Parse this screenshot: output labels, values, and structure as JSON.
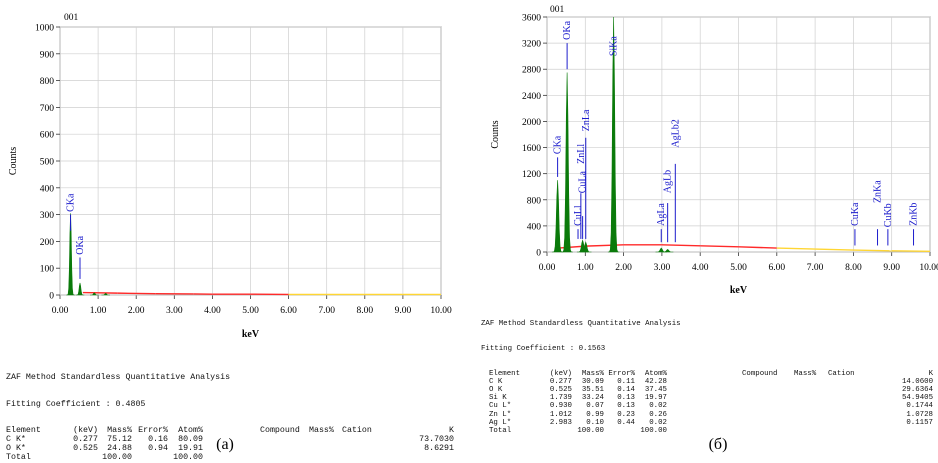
{
  "chart_data": [
    {
      "id": "a",
      "type": "line",
      "title": "",
      "corner_label": "001",
      "xlabel": "keV",
      "ylabel": "Counts",
      "xlim": [
        0,
        10
      ],
      "ylim": [
        0,
        1000
      ],
      "x_ticks": [
        0,
        1,
        2,
        3,
        4,
        5,
        6,
        7,
        8,
        9,
        10
      ],
      "x_tick_labels": [
        "0.00",
        "1.00",
        "2.00",
        "3.00",
        "4.00",
        "5.00",
        "6.00",
        "7.00",
        "8.00",
        "9.00",
        "10.00"
      ],
      "y_ticks": [
        0,
        100,
        200,
        300,
        400,
        500,
        600,
        700,
        800,
        900,
        1000
      ],
      "y_tick_labels": [
        "0",
        "100",
        "200",
        "300",
        "400",
        "500",
        "600",
        "700",
        "800",
        "900",
        "1000"
      ],
      "grid": true,
      "peaks": [
        {
          "x": 0.277,
          "height": 305
        },
        {
          "x": 0.525,
          "height": 45
        },
        {
          "x": 0.9,
          "height": 8
        },
        {
          "x": 1.2,
          "height": 6
        }
      ],
      "background": {
        "x": [
          0.6,
          1.5,
          2.5,
          3.5,
          4.0,
          5,
          6,
          7,
          8,
          9,
          10
        ],
        "y": [
          9,
          7,
          5,
          4,
          3,
          3,
          2,
          2,
          2,
          2,
          2
        ]
      },
      "annotations": [
        {
          "label": "CKa",
          "x": 0.277,
          "line_bottom": 240,
          "line_top": 300,
          "text_bottom": 310
        },
        {
          "label": "OKa",
          "x": 0.525,
          "line_bottom": 60,
          "line_top": 140,
          "text_bottom": 150
        }
      ],
      "colors": {
        "peak": "#0a7a0a",
        "background_low": "#ff2a2a",
        "background_high": "#ffd633",
        "annotation": "#1c1ccc",
        "grid": "#cfcfcf"
      }
    },
    {
      "id": "b",
      "type": "line",
      "title": "",
      "corner_label": "001",
      "xlabel": "keV",
      "ylabel": "Counts",
      "xlim": [
        0,
        10
      ],
      "ylim": [
        0,
        3600
      ],
      "x_ticks": [
        0,
        1,
        2,
        3,
        4,
        5,
        6,
        7,
        8,
        9,
        10
      ],
      "x_tick_labels": [
        "0.00",
        "1.00",
        "2.00",
        "3.00",
        "4.00",
        "5.00",
        "6.00",
        "7.00",
        "8.00",
        "9.00",
        "10.00"
      ],
      "y_ticks": [
        0,
        400,
        800,
        1200,
        1600,
        2000,
        2400,
        2800,
        3200,
        3600
      ],
      "y_tick_labels": [
        "0",
        "400",
        "800",
        "1200",
        "1600",
        "2000",
        "2400",
        "2800",
        "3200",
        "3600"
      ],
      "grid": true,
      "peaks": [
        {
          "x": 0.277,
          "height": 1100
        },
        {
          "x": 0.525,
          "height": 2750
        },
        {
          "x": 0.93,
          "height": 180
        },
        {
          "x": 1.012,
          "height": 150
        },
        {
          "x": 1.739,
          "height": 3600
        },
        {
          "x": 2.983,
          "height": 60
        },
        {
          "x": 3.15,
          "height": 40
        }
      ],
      "background": {
        "x": [
          0.3,
          1.0,
          2.0,
          3.0,
          4.0,
          5.0,
          6.0,
          7.0,
          8.0,
          9.0,
          10.0
        ],
        "y": [
          60,
          90,
          110,
          110,
          95,
          80,
          60,
          45,
          30,
          18,
          10
        ]
      },
      "annotations": [
        {
          "label": "CKa",
          "x": 0.277,
          "line_bottom": 1150,
          "line_top": 1450,
          "text_bottom": 1500
        },
        {
          "label": "OKa",
          "x": 0.525,
          "line_bottom": 2800,
          "line_top": 3200,
          "text_bottom": 3250
        },
        {
          "label": "CuLl",
          "x": 0.81,
          "line_bottom": 200,
          "line_top": 350,
          "text_bottom": 400
        },
        {
          "label": "CuLa",
          "x": 0.93,
          "line_bottom": 200,
          "line_top": 550,
          "text_bottom": 900
        },
        {
          "label": "ZnLl",
          "x": 0.884,
          "line_bottom": 200,
          "line_top": 900,
          "text_bottom": 1350
        },
        {
          "label": "ZnLa",
          "x": 1.012,
          "line_bottom": 200,
          "line_top": 1750,
          "text_bottom": 1850
        },
        {
          "label": "SiKa",
          "x": 1.739,
          "line_bottom": 3600,
          "line_top": 3600,
          "text_bottom": 3000
        },
        {
          "label": "AgLa",
          "x": 2.983,
          "line_bottom": 150,
          "line_top": 350,
          "text_bottom": 400
        },
        {
          "label": "AgLb",
          "x": 3.15,
          "line_bottom": 150,
          "line_top": 750,
          "text_bottom": 900
        },
        {
          "label": "AgLb2",
          "x": 3.35,
          "line_bottom": 150,
          "line_top": 1350,
          "text_bottom": 1600
        },
        {
          "label": "CuKa",
          "x": 8.04,
          "line_bottom": 100,
          "line_top": 350,
          "text_bottom": 400
        },
        {
          "label": "ZnKa",
          "x": 8.63,
          "line_bottom": 100,
          "line_top": 350,
          "text_bottom": 750
        },
        {
          "label": "CuKb",
          "x": 8.9,
          "line_bottom": 100,
          "line_top": 350,
          "text_bottom": 380
        },
        {
          "label": "ZnKb",
          "x": 9.57,
          "line_bottom": 100,
          "line_top": 350,
          "text_bottom": 400
        }
      ],
      "colors": {
        "peak": "#0a7a0a",
        "background_low": "#ff2a2a",
        "background_high": "#ffd633",
        "annotation": "#1c1ccc",
        "grid": "#cfcfcf"
      }
    }
  ],
  "tables": [
    {
      "id": "a",
      "header": "ZAF Method Standardless Quantitative Analysis",
      "fitting": "Fitting Coefficient : 0.4805",
      "columns": [
        "Element",
        "(keV)",
        "Mass%",
        "Error%",
        "Atom%",
        "Compound",
        "Mass%",
        "Cation",
        "K"
      ],
      "rows": [
        [
          "C K*",
          "0.277",
          "75.12",
          "0.16",
          "80.09",
          "",
          "",
          "",
          "73.7030"
        ],
        [
          "O K*",
          "0.525",
          "24.88",
          "0.94",
          "19.91",
          "",
          "",
          "",
          "8.6291"
        ]
      ],
      "total": [
        "Total",
        "",
        "100.00",
        "",
        "100.00",
        "",
        "",
        "",
        ""
      ]
    },
    {
      "id": "b",
      "header": "ZAF Method Standardless Quantitative Analysis",
      "fitting": "Fitting Coefficient : 0.1563",
      "columns": [
        "Element",
        "(keV)",
        "Mass%",
        "Error%",
        "Atom%",
        "Compound",
        "Mass%",
        "Cation",
        "K"
      ],
      "rows": [
        [
          "C K",
          "0.277",
          "30.09",
          "0.11",
          "42.28",
          "",
          "",
          "",
          "14.0600"
        ],
        [
          "O K",
          "0.525",
          "35.51",
          "0.14",
          "37.45",
          "",
          "",
          "",
          "29.6364"
        ],
        [
          "Si K",
          "1.739",
          "33.24",
          "0.13",
          "19.97",
          "",
          "",
          "",
          "54.9405"
        ],
        [
          "Cu L*",
          "0.930",
          "0.07",
          "0.13",
          "0.02",
          "",
          "",
          "",
          "0.1744"
        ],
        [
          "Zn L*",
          "1.012",
          "0.99",
          "0.23",
          "0.26",
          "",
          "",
          "",
          "1.0728"
        ],
        [
          "Ag L*",
          "2.983",
          "0.10",
          "0.44",
          "0.02",
          "",
          "",
          "",
          "0.1157"
        ]
      ],
      "total": [
        "Total",
        "",
        "100.00",
        "",
        "100.00",
        "",
        "",
        "",
        ""
      ]
    }
  ],
  "captions": [
    "(a)",
    "(б)"
  ]
}
